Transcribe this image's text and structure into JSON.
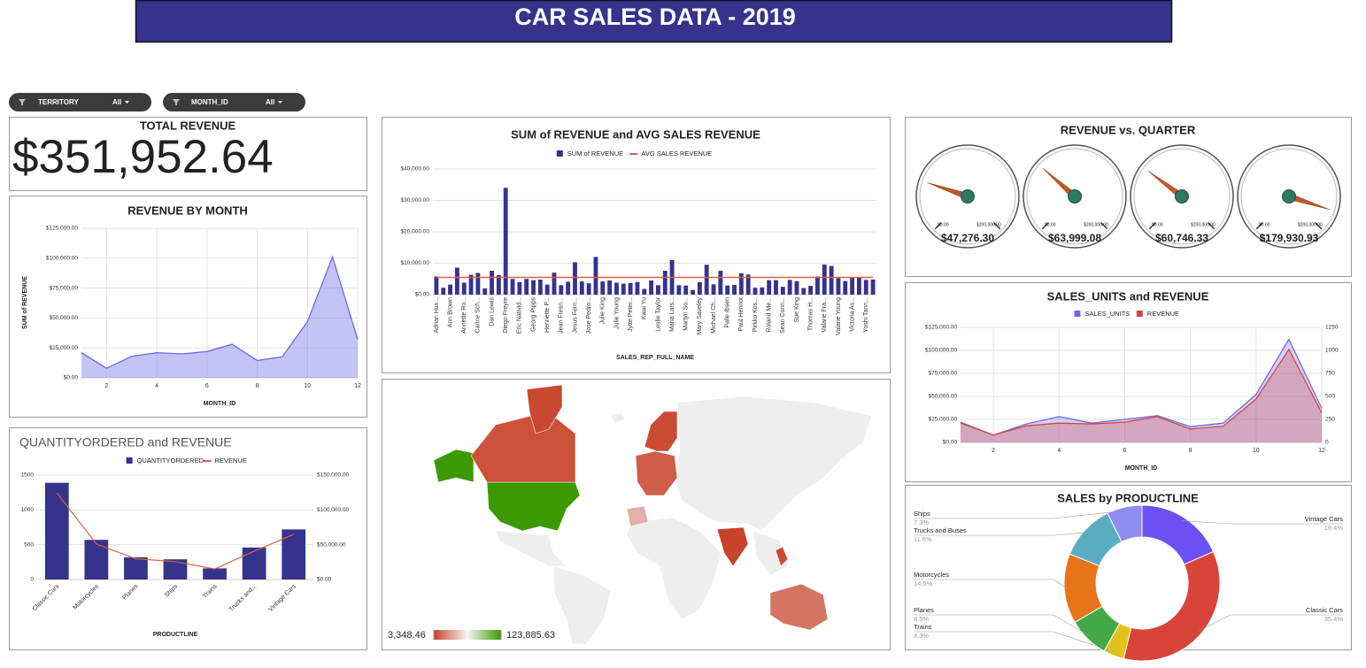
{
  "header": {
    "title": "CAR SALES DATA - 2019"
  },
  "filters": [
    {
      "label": "TERRITORY",
      "value": "All"
    },
    {
      "label": "MONTH_ID",
      "value": "All"
    }
  ],
  "scorecard": {
    "title": "TOTAL REVENUE",
    "value": "$351,952.64"
  },
  "chart_data": [
    {
      "type": "area",
      "title": "REVENUE BY MONTH",
      "x_label": "MONTH_ID",
      "y_label": "SUM of REVENUE",
      "x": [
        1,
        2,
        3,
        4,
        5,
        6,
        7,
        8,
        9,
        10,
        11,
        12
      ],
      "xlim": [
        1,
        12
      ],
      "xticks": [
        2,
        4,
        6,
        8,
        10,
        12
      ],
      "ylim": [
        0,
        125000
      ],
      "yticks": [
        {
          "value": 0,
          "label": "$0.00"
        },
        {
          "value": 25000,
          "label": "$25,000.00"
        },
        {
          "value": 50000,
          "label": "$50,000.00"
        },
        {
          "value": 75000,
          "label": "$75,000.00"
        },
        {
          "value": 100000,
          "label": "$100,000.00"
        },
        {
          "value": 125000,
          "label": "$125,000.00"
        }
      ],
      "grid": true,
      "series": [
        {
          "color": "#6a6ae8",
          "values": [
            21000,
            8000,
            18000,
            21000,
            20000,
            22000,
            28000,
            14500,
            17500,
            47000,
            101000,
            32000
          ]
        }
      ]
    },
    {
      "type": "bar",
      "title": "SUM of REVENUE and AVG SALES REVENUE",
      "x_label": "SALES_REP_FULL_NAME",
      "categories": [
        "Adrian Hux...",
        null,
        "Ann Brown",
        null,
        "Annette Ro...",
        null,
        "Carine Sch...",
        null,
        "Dan Lewis",
        null,
        "Diego Freyre",
        null,
        "Eric Nativid...",
        null,
        "Georg Pipps",
        null,
        "Henriette P...",
        null,
        "Jean Fresn...",
        null,
        "Jesus Fern...",
        null,
        "Jose Pedro...",
        null,
        "Julie King",
        null,
        "Julie Young",
        null,
        "Jytte Peter...",
        null,
        "Kwai Yu",
        null,
        "Leslie Taylor",
        null,
        "Maria Lars...",
        null,
        "Martyn So...",
        null,
        "Mary Saveley",
        null,
        "Michael Ch...",
        null,
        "Palle Ibsen",
        null,
        "Paul Henriot",
        null,
        "Pirkko Kos...",
        null,
        "Roland Me...",
        null,
        "Sean Conn...",
        null,
        "Sue King",
        null,
        "Thomas H...",
        null,
        "Valarie Fra...",
        null,
        "Valarie Young",
        null,
        "Victoria As...",
        null,
        "Yoshi Tann...",
        null
      ],
      "ylim": [
        0,
        40000
      ],
      "yticks": [
        {
          "value": 0,
          "label": "$0.00"
        },
        {
          "value": 10000,
          "label": "$10,000.00"
        },
        {
          "value": 20000,
          "label": "$20,000.00"
        },
        {
          "value": 30000,
          "label": "$30,000.00"
        },
        {
          "value": 40000,
          "label": "$40,000.00"
        }
      ],
      "grid": true,
      "series": [
        {
          "name": "SUM of REVENUE",
          "type": "bar",
          "color": "#35338c",
          "values": [
            5800,
            2200,
            3200,
            8600,
            3800,
            6300,
            6900,
            2000,
            7600,
            6200,
            34000,
            5000,
            4000,
            5000,
            4600,
            4800,
            3200,
            7000,
            3000,
            4100,
            10300,
            4200,
            3600,
            12000,
            4200,
            4500,
            3800,
            3500,
            3700,
            4000,
            1800,
            4500,
            3000,
            7600,
            11000,
            3000,
            2900,
            1500,
            4000,
            9500,
            3300,
            7600,
            2900,
            3100,
            6800,
            6400,
            2200,
            2300,
            4600,
            4600,
            2500,
            4700,
            4300,
            2100,
            2800,
            5800,
            9600,
            9100,
            5300,
            4300,
            5300,
            5600,
            4700,
            4800
          ]
        },
        {
          "name": "AVG SALES REVENUE",
          "type": "line",
          "color": "#d9604a",
          "values": [
            5499,
            5499,
            5499,
            5499,
            5499,
            5499,
            5499,
            5499,
            5499,
            5499,
            5499,
            5499,
            5499,
            5499,
            5499,
            5499,
            5499,
            5499,
            5499,
            5499,
            5499,
            5499,
            5499,
            5499,
            5499,
            5499,
            5499,
            5499,
            5499,
            5499,
            5499,
            5499,
            5499,
            5499,
            5499,
            5499,
            5499,
            5499,
            5499,
            5499,
            5499,
            5499,
            5499,
            5499,
            5499,
            5499,
            5499,
            5499,
            5499,
            5499,
            5499,
            5499,
            5499,
            5499,
            5499,
            5499,
            5499,
            5499,
            5499,
            5499,
            5499,
            5499,
            5499,
            5499
          ]
        }
      ]
    },
    {
      "type": "map",
      "colorscale": [
        "#c8432a",
        "#f6f6f6",
        "#3a9a00"
      ],
      "legend": [
        {
          "value": 3348.46,
          "label": "3,348.46"
        },
        {
          "value": 123885.63,
          "label": "123,885.63"
        }
      ],
      "values": [
        123885.63,
        8000,
        5000,
        6000,
        12000,
        40000,
        3348.46,
        6000,
        20000
      ]
    },
    {
      "type": "gauge",
      "title": "REVENUE vs. QUARTER",
      "ticks": [
        {
          "value": 0,
          "label": "$0.00"
        },
        {
          "value": 200000,
          "label": "$200,000.00"
        }
      ],
      "values": [
        47276.3,
        63999.08,
        60746.33,
        179930.93
      ],
      "value_labels": [
        "$47,276.30",
        "$63,999.08",
        "$60,746.33",
        "$179,930.93"
      ],
      "color": "#c0582a"
    },
    {
      "type": "area",
      "title": "SALES_UNITS and REVENUE",
      "x_label": "MONTH_ID",
      "x": [
        1,
        2,
        3,
        4,
        5,
        6,
        7,
        8,
        9,
        10,
        11,
        12
      ],
      "xlim": [
        1,
        12
      ],
      "xticks": [
        2,
        4,
        6,
        8,
        10,
        12
      ],
      "ylim": [
        0,
        125000
      ],
      "yticks": [
        {
          "value": 0,
          "label": "$0.00"
        },
        {
          "value": 25000,
          "label": "$25,000.00"
        },
        {
          "value": 50000,
          "label": "$50,000.00"
        },
        {
          "value": 75000,
          "label": "$75,000.00"
        },
        {
          "value": 100000,
          "label": "$100,000.00"
        },
        {
          "value": 125000,
          "label": "$125,000.00"
        }
      ],
      "y2lim": [
        0,
        1250
      ],
      "y2ticks": [
        0,
        250,
        500,
        750,
        1000,
        1250
      ],
      "grid": true,
      "series": [
        {
          "name": "SALES_UNITS",
          "axis": "y2",
          "color": "#6b6bf0",
          "values": [
            220,
            80,
            200,
            280,
            210,
            250,
            290,
            170,
            210,
            520,
            1120,
            370
          ]
        },
        {
          "name": "REVENUE",
          "color": "#d9443a",
          "values": [
            21000,
            8000,
            18000,
            21000,
            20000,
            22000,
            28000,
            14500,
            17500,
            47000,
            101000,
            32000
          ]
        }
      ]
    },
    {
      "type": "bar",
      "title": "QUANTITYORDERED and REVENUE",
      "x_label": "PRODUCTLINE",
      "categories": [
        "Classic Cars",
        "Motorcycles",
        "Planes",
        "Ships",
        "Trains",
        "Trucks and...",
        "Vintage Cars"
      ],
      "ylim": [
        0,
        1500
      ],
      "yticks": [
        0,
        500,
        1000,
        1500
      ],
      "y2lim": [
        0,
        150000
      ],
      "y2ticks": [
        {
          "value": 0,
          "label": "$0.00"
        },
        {
          "value": 50000,
          "label": "$50,000.00"
        },
        {
          "value": 100000,
          "label": "$100,000.00"
        },
        {
          "value": 150000,
          "label": "$150,000.00"
        }
      ],
      "grid": true,
      "series": [
        {
          "name": "QUANTITYORDERED",
          "type": "bar",
          "color": "#35338c",
          "values": [
            1390,
            570,
            320,
            290,
            160,
            460,
            720
          ]
        },
        {
          "name": "REVENUE",
          "type": "line",
          "axis": "y2",
          "color": "#d9604a",
          "values": [
            124591,
            51033,
            29916,
            25693,
            15134,
            40826,
            64759
          ]
        }
      ]
    },
    {
      "type": "pie",
      "title": "SALES by PRODUCTLINE",
      "donut": true,
      "categories": [
        "Vintage Cars",
        "Classic Cars",
        "Trains",
        "Planes",
        "Motorcycles",
        "Trucks and Buses",
        "Ships"
      ],
      "values": [
        18.4,
        35.4,
        4.3,
        8.5,
        14.5,
        11.6,
        7.3
      ],
      "value_labels": [
        "18.4%",
        "35.4%",
        "4.3%",
        "8.5%",
        "14.5%",
        "11.6%",
        "7.3%"
      ],
      "colors": [
        "#6c50f2",
        "#d8433a",
        "#e2c21a",
        "#43a947",
        "#e8741a",
        "#5aadc0",
        "#8f8cf2"
      ]
    }
  ]
}
